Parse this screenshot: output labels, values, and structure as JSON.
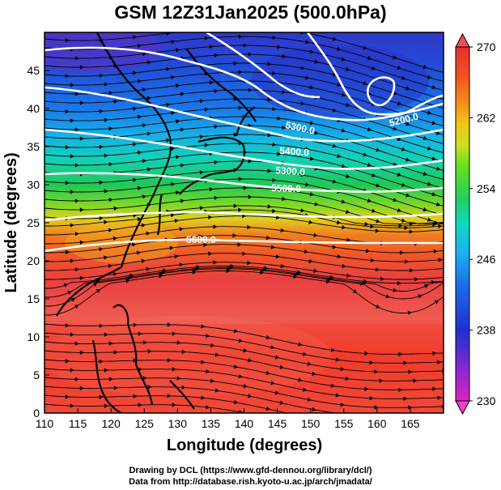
{
  "title": "GSM 12Z31Jan2025 (500.0hPa)",
  "xaxis": {
    "label": "Longitude (degrees)",
    "range": [
      110,
      170
    ],
    "ticks": [
      "110",
      "115",
      "120",
      "125",
      "130",
      "135",
      "140",
      "145",
      "150",
      "155",
      "160",
      "165"
    ]
  },
  "yaxis": {
    "label": "Latitude (degrees)",
    "range": [
      0,
      50
    ],
    "ticks": [
      "0",
      "5",
      "10",
      "15",
      "20",
      "25",
      "30",
      "35",
      "40",
      "45"
    ]
  },
  "colorbar": {
    "ticks": [
      "230",
      "238",
      "246",
      "254",
      "262",
      "270"
    ],
    "range": [
      230,
      270
    ],
    "colors": [
      "#e020c0",
      "#8030d0",
      "#2030d0",
      "#1e6ee8",
      "#18b4f0",
      "#10d8c0",
      "#20d060",
      "#60e020",
      "#c8e020",
      "#f0c818",
      "#f08818",
      "#f05020",
      "#e83030",
      "#f06060"
    ]
  },
  "contours": {
    "labels": [
      "5300.0",
      "5200.0",
      "5300.0",
      "5400.0",
      "5500.0",
      "5600.0"
    ]
  },
  "credits": {
    "drawing": "Drawing by DCL (https://www.gfd-dennou.org/library/dcl/)",
    "data": "Data from http://database.rish.kyoto-u.ac.jp/arch/jmadata/"
  }
}
